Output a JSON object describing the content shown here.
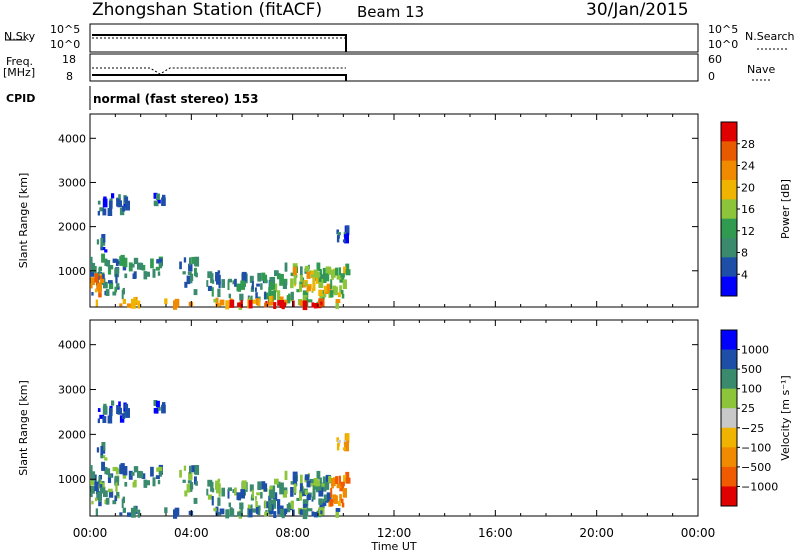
{
  "header": {
    "title": "Zhongshan Station (fitACF)",
    "beam": "Beam 13",
    "date": "30/Jan/2015"
  },
  "top_panels": {
    "nsky_label": "N.Sky",
    "nsearch_label": "N.Search",
    "nsky_ticks": [
      "10^5",
      "10^0"
    ],
    "nsearch_ticks": [
      "10^5",
      "10^0"
    ],
    "freq_label": "Freq.",
    "freq_unit": "[MHz]",
    "freq_ticks": [
      "18",
      "8"
    ],
    "nave_label": "Nave",
    "nave_ticks": [
      "60",
      "0"
    ],
    "cpid_label": "CPID",
    "cpid_value": "normal (fast stereo) 153"
  },
  "colors": {
    "power": [
      "#0000ff",
      "#1e4fa8",
      "#3a8a6e",
      "#2f9a50",
      "#8cc43a",
      "#f0b400",
      "#f08a00",
      "#e85a00",
      "#e00000"
    ],
    "velocity": [
      "#e00000",
      "#f05a00",
      "#f08a00",
      "#f0b400",
      "#c8c8c8",
      "#8cc43a",
      "#3a8a6e",
      "#1e4fa8",
      "#0000ff"
    ]
  },
  "chart_data": [
    {
      "type": "heatmap",
      "ylabel": "Slant Range [km]",
      "xlabel": "",
      "ylim": [
        180,
        4550
      ],
      "xlim": [
        0,
        24
      ],
      "y_ticks": [
        "1000",
        "2000",
        "3000",
        "4000"
      ],
      "colorbar_label": "Power [dB]",
      "colorbar_ticks": [
        "4",
        "8",
        "12",
        "16",
        "20",
        "24",
        "28"
      ]
    },
    {
      "type": "heatmap",
      "ylabel": "Slant Range [km]",
      "xlabel": "Time UT",
      "ylim": [
        180,
        4550
      ],
      "xlim": [
        0,
        24
      ],
      "y_ticks": [
        "1000",
        "2000",
        "3000",
        "4000"
      ],
      "x_ticks": [
        "00:00",
        "04:00",
        "08:00",
        "12:00",
        "16:00",
        "20:00",
        "00:00"
      ],
      "colorbar_label": "Velocity [m s⁻¹]",
      "colorbar_ticks": [
        "1000",
        "500",
        "100",
        "25",
        "−25",
        "−100",
        "−500",
        "−1000"
      ]
    }
  ]
}
